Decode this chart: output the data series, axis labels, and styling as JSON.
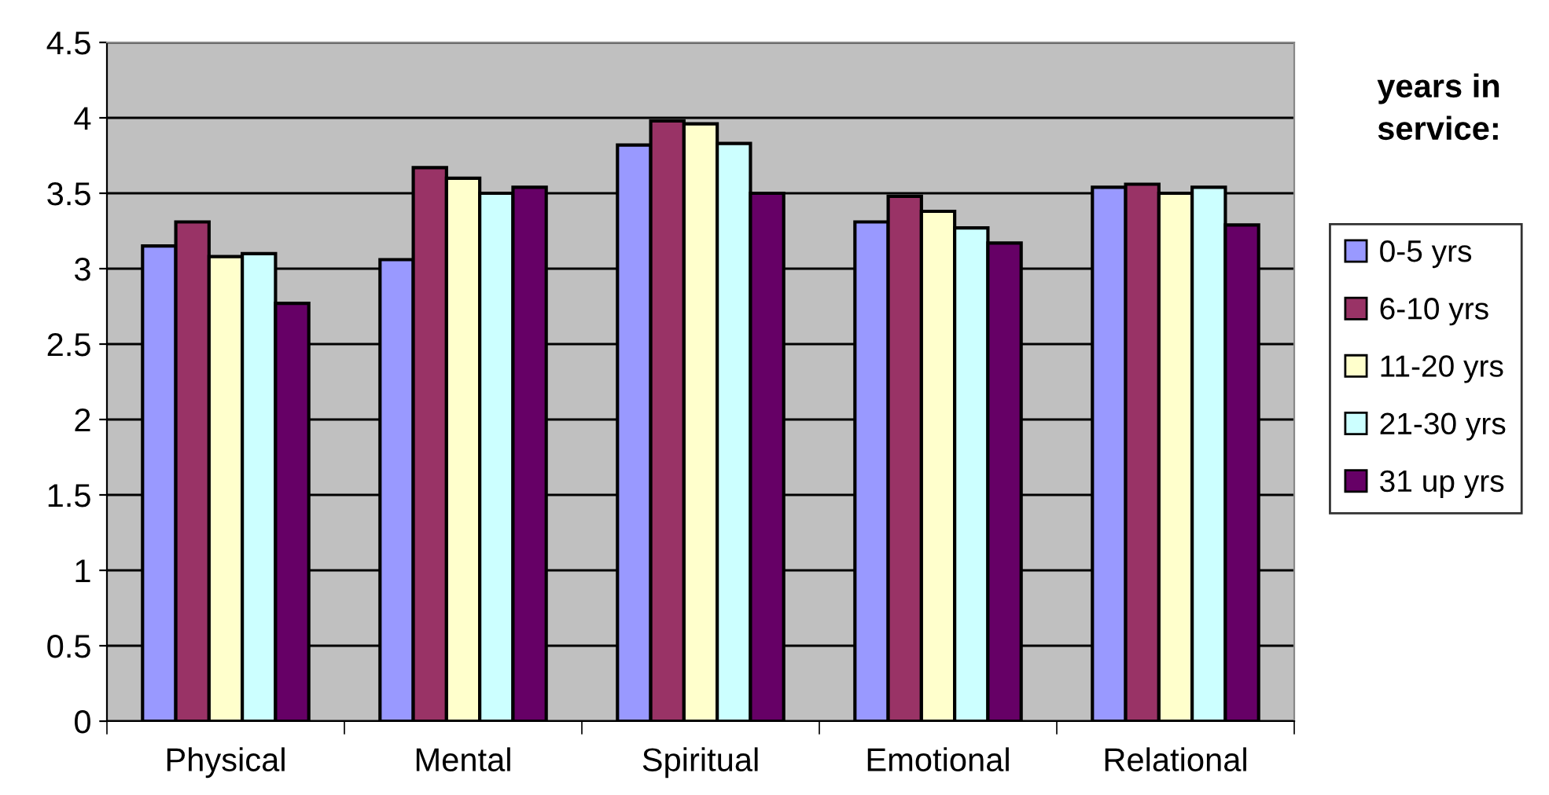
{
  "chart_data": {
    "type": "bar",
    "legend_title": "years in\nservice:",
    "categories": [
      "Physical",
      "Mental",
      "Spiritual",
      "Emotional",
      "Relational"
    ],
    "series": [
      {
        "name": "0-5 yrs",
        "color": "#9999ff",
        "values": [
          3.15,
          3.06,
          3.82,
          3.31,
          3.54
        ]
      },
      {
        "name": "6-10 yrs",
        "color": "#993366",
        "values": [
          3.31,
          3.67,
          3.98,
          3.48,
          3.56
        ]
      },
      {
        "name": "11-20 yrs",
        "color": "#ffffcc",
        "values": [
          3.08,
          3.6,
          3.96,
          3.38,
          3.5
        ]
      },
      {
        "name": "21-30 yrs",
        "color": "#ccffff",
        "values": [
          3.1,
          3.5,
          3.83,
          3.27,
          3.54
        ]
      },
      {
        "name": "31 up yrs",
        "color": "#660066",
        "values": [
          2.77,
          3.54,
          3.5,
          3.17,
          3.29
        ]
      }
    ],
    "ylim": [
      0,
      4.5
    ],
    "yticks": [
      0,
      0.5,
      1,
      1.5,
      2,
      2.5,
      3,
      3.5,
      4,
      4.5
    ],
    "grid": "y",
    "legend": "right"
  }
}
